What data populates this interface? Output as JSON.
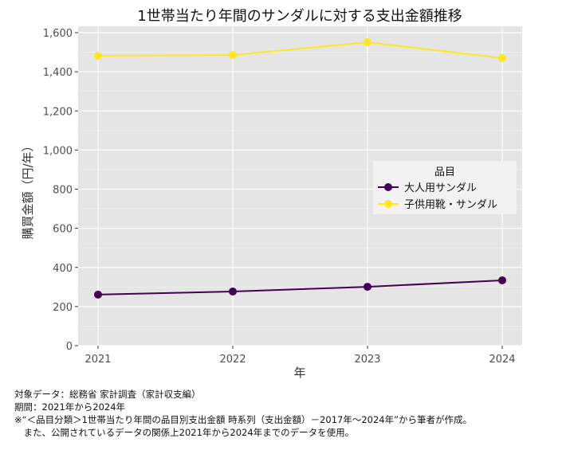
{
  "chart_data": {
    "type": "line",
    "title": "1世帯当たり年間のサンダルに対する支出金額推移",
    "xlabel": "年",
    "ylabel": "購買金額（円/年）",
    "categories": [
      "2021",
      "2022",
      "2023",
      "2024"
    ],
    "ylim": [
      0,
      1600
    ],
    "yticks": [
      0,
      200,
      400,
      600,
      800,
      1000,
      1200,
      1400,
      1600
    ],
    "ytick_labels": [
      "0",
      "200",
      "400",
      "600",
      "800",
      "1,000",
      "1,200",
      "1,400",
      "1,600"
    ],
    "grid": true,
    "legend": {
      "title": "品目",
      "position": "right"
    },
    "series": [
      {
        "name": "大人用サンダル",
        "color": "#440154",
        "values": [
          261,
          277,
          301,
          334
        ]
      },
      {
        "name": "子供用靴・サンダル",
        "color": "#FDE725",
        "values": [
          1482,
          1486,
          1551,
          1470
        ]
      }
    ]
  },
  "notes": [
    "対象データ：総務省 家計調査（家計収支編）",
    "期間：2021年から2024年",
    "※“＜品目分類＞1世帯当たり年間の品目別支出金額 時系列（支出金額）－2017年～2024年”から筆者が作成。",
    "　また、公開されているデータの関係上2021年から2024年までのデータを使用。"
  ]
}
